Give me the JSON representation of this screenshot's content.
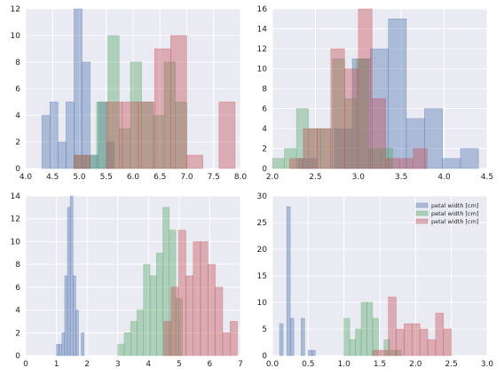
{
  "colors": {
    "background": "#eaeaf2",
    "grid": "#ffffff",
    "blue": "#4c72b0",
    "green": "#55a868",
    "red": "#c44e52"
  },
  "series_colors": [
    "blue",
    "green",
    "red"
  ],
  "bar_alpha": 0.4,
  "chart_data": [
    {
      "type": "bar",
      "title": "",
      "xlabel": "",
      "ylabel": "",
      "grid": true,
      "xlim": [
        4.0,
        8.0
      ],
      "ylim": [
        0,
        12
      ],
      "xticks": [
        "4.0",
        "4.5",
        "5.0",
        "5.5",
        "6.0",
        "6.5",
        "7.0",
        "7.5",
        "8.0"
      ],
      "yticks": [
        "0",
        "2",
        "4",
        "6",
        "8",
        "10",
        "12"
      ],
      "series": [
        {
          "bin_edges": [
            4.3,
            4.45,
            4.6,
            4.75,
            4.9,
            5.05,
            5.2,
            5.35,
            5.5,
            5.65,
            5.8
          ],
          "counts": [
            4,
            5,
            2,
            5,
            12,
            8,
            1,
            5,
            2,
            0
          ]
        },
        {
          "bin_edges": [
            4.9,
            5.11,
            5.32,
            5.53,
            5.74,
            5.95,
            6.16,
            6.37,
            6.58,
            6.79,
            7.0
          ],
          "counts": [
            1,
            1,
            5,
            10,
            3,
            8,
            5,
            4,
            8,
            5
          ]
        },
        {
          "bin_edges": [
            4.9,
            5.2,
            5.5,
            5.8,
            6.1,
            6.4,
            6.7,
            7.0,
            7.3,
            7.6,
            7.9
          ],
          "counts": [
            1,
            0,
            5,
            5,
            5,
            9,
            10,
            1,
            0,
            5
          ]
        }
      ]
    },
    {
      "type": "bar",
      "title": "",
      "xlabel": "",
      "ylabel": "",
      "grid": true,
      "xlim": [
        2.0,
        4.5
      ],
      "ylim": [
        0,
        16
      ],
      "xticks": [
        "2.0",
        "2.5",
        "3.0",
        "3.5",
        "4.0",
        "4.5"
      ],
      "yticks": [
        "0",
        "2",
        "4",
        "6",
        "8",
        "10",
        "12",
        "14",
        "16"
      ],
      "series": [
        {
          "bin_edges": [
            2.3,
            2.51,
            2.72,
            2.93,
            3.14,
            3.35,
            3.56,
            3.77,
            3.98,
            4.19,
            4.4
          ],
          "counts": [
            1,
            0,
            4,
            11,
            12,
            15,
            5,
            6,
            1,
            2
          ]
        },
        {
          "bin_edges": [
            2.0,
            2.14,
            2.28,
            2.42,
            2.56,
            2.7,
            2.84,
            2.98,
            3.12,
            3.26,
            3.4
          ],
          "counts": [
            1,
            2,
            6,
            4,
            4,
            11,
            7,
            11,
            2,
            2
          ]
        },
        {
          "bin_edges": [
            2.2,
            2.36,
            2.52,
            2.68,
            2.84,
            3.0,
            3.16,
            3.32,
            3.48,
            3.64,
            3.8
          ],
          "counts": [
            1,
            4,
            4,
            12,
            10,
            16,
            7,
            1,
            1,
            2
          ]
        }
      ]
    },
    {
      "type": "bar",
      "title": "",
      "xlabel": "",
      "ylabel": "",
      "grid": true,
      "xlim": [
        0,
        7
      ],
      "ylim": [
        0,
        14
      ],
      "xticks": [
        "0",
        "1",
        "2",
        "3",
        "4",
        "5",
        "6",
        "7"
      ],
      "yticks": [
        "0",
        "2",
        "4",
        "6",
        "8",
        "10",
        "12",
        "14"
      ],
      "series": [
        {
          "bin_edges": [
            1.0,
            1.09,
            1.18,
            1.27,
            1.36,
            1.45,
            1.54,
            1.63,
            1.72,
            1.81,
            1.9
          ],
          "counts": [
            1,
            1,
            2,
            7,
            13,
            14,
            7,
            4,
            0,
            2
          ]
        },
        {
          "bin_edges": [
            3.0,
            3.21,
            3.42,
            3.63,
            3.84,
            4.05,
            4.26,
            4.47,
            4.68,
            4.89,
            5.1
          ],
          "counts": [
            1,
            2,
            3,
            4,
            8,
            7,
            9,
            13,
            11,
            5
          ]
        },
        {
          "bin_edges": [
            4.5,
            4.74,
            4.98,
            5.22,
            5.46,
            5.7,
            5.94,
            6.18,
            6.42,
            6.66,
            6.9
          ],
          "counts": [
            3,
            6,
            11,
            7,
            10,
            10,
            8,
            6,
            2,
            3
          ]
        }
      ]
    },
    {
      "type": "bar",
      "title": "",
      "xlabel": "",
      "ylabel": "",
      "grid": true,
      "xlim": [
        0.0,
        3.0
      ],
      "ylim": [
        0,
        30
      ],
      "xticks": [
        "0.0",
        "0.5",
        "1.0",
        "1.5",
        "2.0",
        "2.5",
        "3.0"
      ],
      "yticks": [
        "0",
        "5",
        "10",
        "15",
        "20",
        "25",
        "30"
      ],
      "legend": {
        "position": "top-right",
        "entries": [
          "petal width [cm]",
          "petal width [cm]",
          "petal width [cm]"
        ]
      },
      "series": [
        {
          "bin_edges": [
            0.1,
            0.15,
            0.2,
            0.25,
            0.3,
            0.35,
            0.4,
            0.45,
            0.5,
            0.55,
            0.6
          ],
          "counts": [
            6,
            0,
            28,
            7,
            0,
            0,
            7,
            0,
            1,
            1
          ]
        },
        {
          "bin_edges": [
            1.0,
            1.08,
            1.16,
            1.24,
            1.32,
            1.4,
            1.48,
            1.56,
            1.64,
            1.72,
            1.8
          ],
          "counts": [
            7,
            3,
            5,
            10,
            10,
            7,
            0,
            3,
            1,
            1
          ]
        },
        {
          "bin_edges": [
            1.4,
            1.51,
            1.62,
            1.73,
            1.84,
            1.95,
            2.06,
            2.17,
            2.28,
            2.39,
            2.5
          ],
          "counts": [
            1,
            1,
            11,
            5,
            6,
            6,
            5,
            3,
            8,
            5
          ]
        }
      ]
    }
  ]
}
